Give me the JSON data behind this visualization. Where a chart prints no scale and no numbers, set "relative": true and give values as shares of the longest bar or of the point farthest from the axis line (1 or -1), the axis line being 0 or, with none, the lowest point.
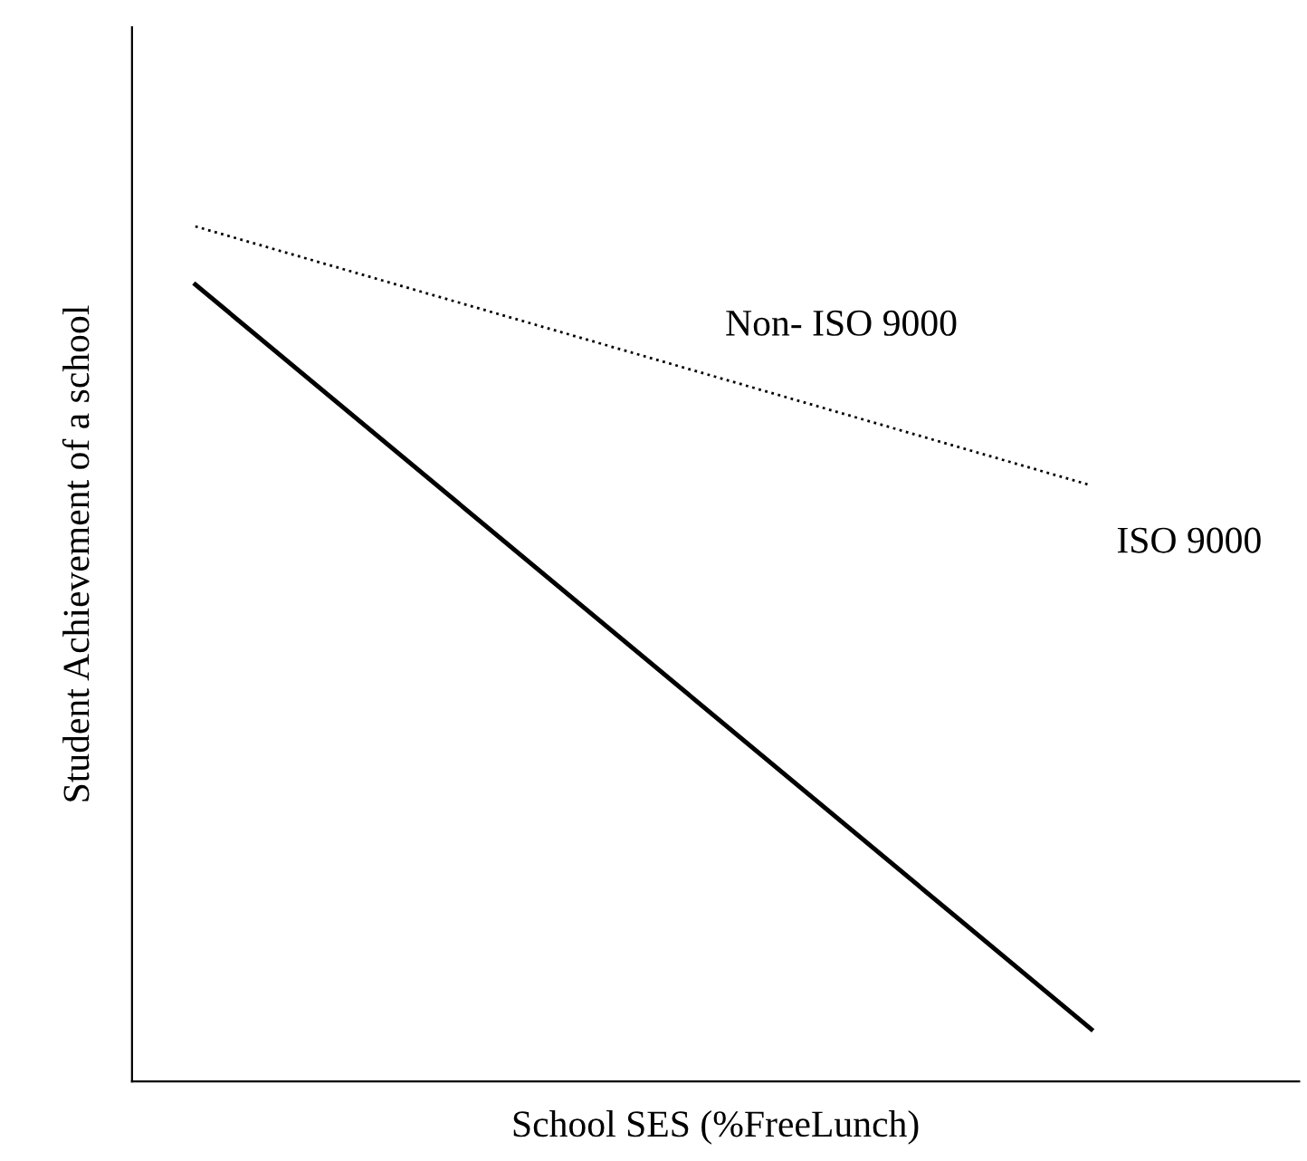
{
  "chart_data": {
    "type": "line",
    "relative": true,
    "xlabel": "School SES (%FreeLunch)",
    "ylabel": "Student Achievement of a school",
    "categories": [
      null,
      null
    ],
    "series": [
      {
        "color": "#000000",
        "line_style": "dotted",
        "values": [
          1,
          0.697
        ]
      },
      {
        "color": "#000000",
        "line_style": "solid",
        "values": [
          0.932,
          0.061
        ]
      }
    ],
    "annotations": [
      "Non- ISO 9000",
      "ISO 9000"
    ],
    "marker": "none",
    "grid": false,
    "legend": false
  }
}
